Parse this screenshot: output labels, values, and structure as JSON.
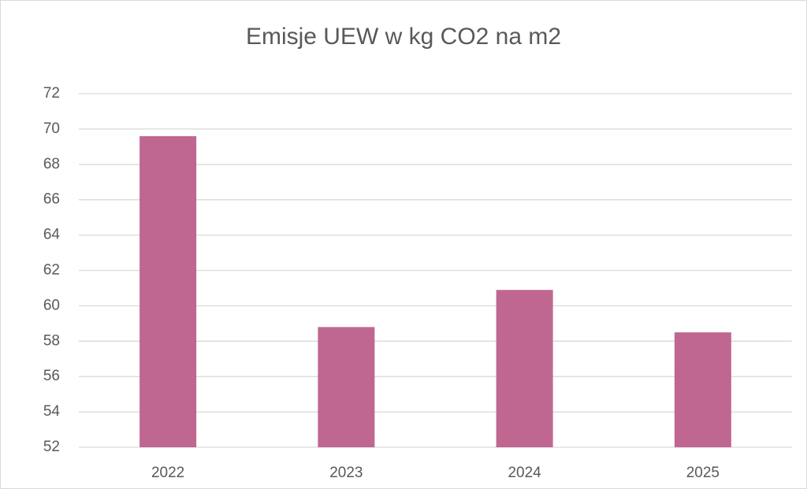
{
  "chart_data": {
    "type": "bar",
    "title": "Emisje UEW w kg CO2 na m2",
    "categories": [
      "2022",
      "2023",
      "2024",
      "2025"
    ],
    "values": [
      69.6,
      58.8,
      60.9,
      58.5
    ],
    "color": "#bf6790",
    "ylim": [
      52,
      72
    ],
    "yticks": [
      52,
      54,
      56,
      58,
      60,
      62,
      64,
      66,
      68,
      70,
      72
    ],
    "grid": true
  }
}
